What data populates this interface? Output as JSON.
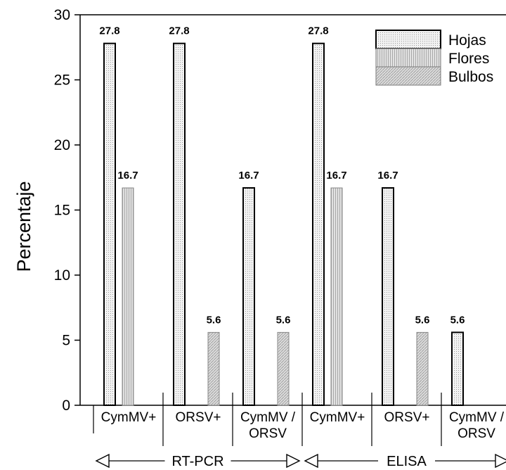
{
  "chart_data": {
    "type": "bar",
    "ylabel": "Percentaje",
    "ylim": [
      0,
      30
    ],
    "yticks": [
      0,
      5,
      10,
      15,
      20,
      25,
      30
    ],
    "legend": {
      "placement": "top-right"
    },
    "series": [
      {
        "name": "Hojas",
        "fill": "#eeeeee",
        "stroke": "#000000",
        "pattern": "dotted"
      },
      {
        "name": "Flores",
        "fill": "#d6d6d6",
        "stroke": "#888888",
        "pattern": "vertical-lines"
      },
      {
        "name": "Bulbos",
        "fill": "#cfcfcf",
        "stroke": "#888888",
        "pattern": "diagonal-lines"
      }
    ],
    "categories": [
      {
        "label": [
          "CymMV+"
        ],
        "group": "RT-PCR",
        "values": [
          27.8,
          16.7,
          null
        ]
      },
      {
        "label": [
          "ORSV+"
        ],
        "group": "RT-PCR",
        "values": [
          27.8,
          null,
          5.6
        ]
      },
      {
        "label": [
          "CymMV /",
          "ORSV"
        ],
        "group": "RT-PCR",
        "values": [
          16.7,
          null,
          5.6
        ]
      },
      {
        "label": [
          "CymMV+"
        ],
        "group": "ELISA",
        "values": [
          27.8,
          16.7,
          null
        ]
      },
      {
        "label": [
          "ORSV+"
        ],
        "group": "ELISA",
        "values": [
          16.7,
          null,
          5.6
        ]
      },
      {
        "label": [
          "CymMV /",
          "ORSV"
        ],
        "group": "ELISA",
        "values": [
          5.6,
          null,
          null
        ]
      }
    ],
    "data_labels": [
      {
        "category": 0,
        "series": 0,
        "text": "27.8"
      },
      {
        "category": 0,
        "series": 1,
        "text": "16.7"
      },
      {
        "category": 1,
        "series": 0,
        "text": "27.8"
      },
      {
        "category": 1,
        "series": 2,
        "text": "5.6"
      },
      {
        "category": 2,
        "series": 0,
        "text": "16.7"
      },
      {
        "category": 2,
        "series": 2,
        "text": "5.6"
      },
      {
        "category": 3,
        "series": 0,
        "text": "27.8"
      },
      {
        "category": 3,
        "series": 1,
        "text": "16.7"
      },
      {
        "category": 4,
        "series": 0,
        "text": "16.7"
      },
      {
        "category": 4,
        "series": 2,
        "text": "5.6"
      },
      {
        "category": 5,
        "series": 0,
        "text": "5.6"
      }
    ],
    "groups": [
      {
        "label": "RT-PCR",
        "categories": [
          0,
          1,
          2
        ]
      },
      {
        "label": "ELISA",
        "categories": [
          3,
          4,
          5
        ]
      }
    ]
  }
}
